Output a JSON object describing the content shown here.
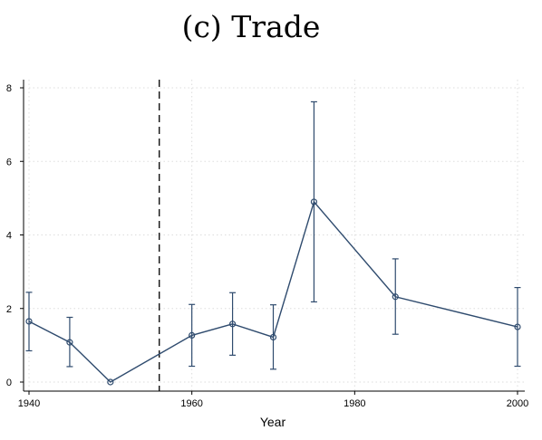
{
  "chart_data": {
    "type": "line",
    "title": "(c) Trade",
    "xlabel": "Year",
    "ylabel": "",
    "xlim": [
      1940,
      2000
    ],
    "ylim": [
      0,
      8
    ],
    "x_ticks": [
      1940,
      1960,
      1980,
      2000
    ],
    "y_ticks": [
      0,
      2,
      4,
      6,
      8
    ],
    "grid": true,
    "reference_line": {
      "x": 1956,
      "style": "dashed"
    },
    "series": [
      {
        "x": [
          1940,
          1945,
          1950,
          1960,
          1965,
          1970,
          1975,
          1985,
          2000
        ],
        "y": [
          1.65,
          1.08,
          0.0,
          1.27,
          1.58,
          1.22,
          4.9,
          2.32,
          1.5
        ],
        "ci_low": [
          0.85,
          0.42,
          0.0,
          0.43,
          0.73,
          0.35,
          2.18,
          1.3,
          0.43
        ],
        "ci_high": [
          2.44,
          1.76,
          0.0,
          2.11,
          2.43,
          2.1,
          7.62,
          3.35,
          2.57
        ]
      }
    ],
    "colors": {
      "series": "#2f4b6e",
      "ci": "#2f4b6e",
      "grid": "#dddddd",
      "axis": "#000000"
    }
  }
}
